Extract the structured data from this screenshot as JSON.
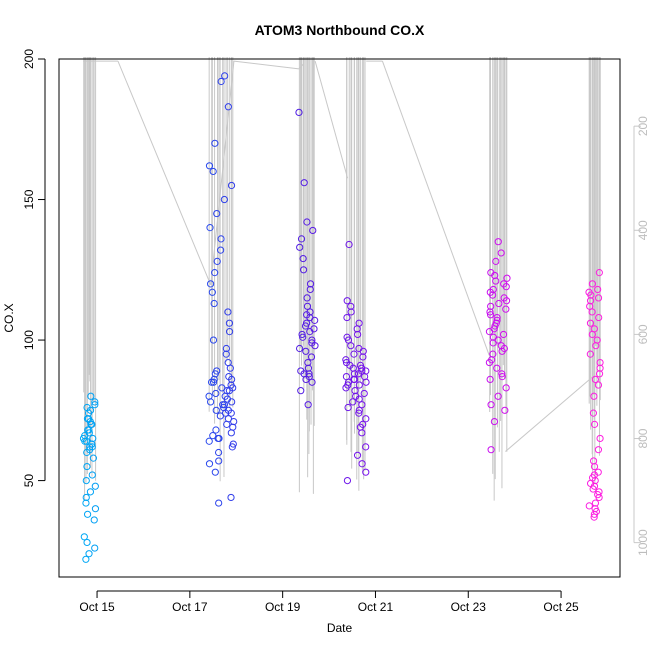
{
  "chart_data": {
    "type": "scatter",
    "title": "ATOM3 Northbound CO.X",
    "xlabel": "Date",
    "ylabel": "CO.X",
    "x_tick_labels": [
      "Oct 15",
      "Oct 17",
      "Oct 19",
      "Oct 21",
      "Oct 23",
      "Oct 25"
    ],
    "x_tick_days": [
      15,
      17,
      19,
      21,
      23,
      25
    ],
    "xlim": [
      14.18,
      26.27
    ],
    "ylim": [
      15.7,
      200
    ],
    "y_ticks": [
      50,
      100,
      150,
      200
    ],
    "secondary_axis": {
      "side": "right",
      "reversed": true,
      "ticks": [
        200,
        400,
        600,
        800,
        1000
      ],
      "range": [
        71,
        1066
      ],
      "line_color": "#c8c8c8",
      "tick_color": "#bdbdbd"
    },
    "grid": false,
    "legend": "none",
    "marker": "open-circle",
    "color_ramp": [
      "#00a9f5",
      "#1f55f0",
      "#4b1fe3",
      "#8a0ef0",
      "#cd0ef0",
      "#ff1fe0"
    ],
    "flights": [
      {
        "day": 14.78,
        "days": [
          14.7,
          14.97
        ],
        "values": [
          22,
          24,
          26,
          28,
          30,
          36,
          38,
          40,
          42,
          44,
          46,
          48,
          50,
          52,
          55,
          58,
          60,
          61,
          62,
          62,
          63,
          63,
          64,
          64,
          65,
          65,
          66,
          67,
          68,
          68,
          70,
          70,
          71,
          72,
          72,
          74,
          75,
          76,
          77,
          78,
          80
        ]
      },
      {
        "day": 17.6,
        "days": [
          17.4,
          17.95
        ],
        "values": [
          42,
          44,
          53,
          56,
          57,
          60,
          62,
          63,
          64,
          65,
          65,
          66,
          67,
          68,
          69,
          70,
          71,
          72,
          73,
          74,
          74,
          75,
          75,
          76,
          77,
          77,
          78,
          78,
          79,
          80,
          80,
          81,
          82,
          82,
          83,
          83,
          84,
          85,
          85,
          86,
          86,
          87,
          88,
          89,
          90,
          92,
          95,
          97,
          100,
          103,
          106,
          110,
          113,
          117,
          120,
          124,
          128,
          132,
          136,
          140,
          145,
          150,
          155,
          160,
          162,
          170,
          183,
          192,
          194
        ]
      },
      {
        "day": 19.55,
        "days": [
          19.35,
          19.7
        ],
        "values": [
          77,
          82,
          85,
          86,
          87,
          88,
          88,
          89,
          90,
          92,
          94,
          96,
          97,
          98,
          99,
          100,
          101,
          102,
          103,
          104,
          105,
          106,
          107,
          108,
          109,
          110,
          112,
          115,
          118,
          120,
          125,
          129,
          133,
          136,
          139,
          142,
          156,
          181
        ]
      },
      {
        "day": 20.6,
        "days": [
          20.35,
          20.8
        ],
        "values": [
          50,
          53,
          56,
          59,
          62,
          67,
          69,
          70,
          72,
          74,
          75,
          76,
          77,
          78,
          79,
          80,
          81,
          82,
          83,
          84,
          84,
          85,
          85,
          86,
          86,
          87,
          87,
          88,
          88,
          89,
          89,
          90,
          90,
          91,
          91,
          92,
          93,
          94,
          95,
          96,
          97,
          98,
          100,
          101,
          102,
          104,
          106,
          108,
          110,
          112,
          114,
          134
        ]
      },
      {
        "day": 23.65,
        "days": [
          23.45,
          23.85
        ],
        "values": [
          61,
          71,
          75,
          77,
          80,
          83,
          86,
          87,
          88,
          90,
          92,
          93,
          95,
          96,
          97,
          98,
          99,
          100,
          101,
          102,
          103,
          104,
          105,
          106,
          107,
          108,
          109,
          110,
          111,
          112,
          113,
          114,
          115,
          116,
          117,
          118,
          119,
          120,
          121,
          122,
          123,
          124,
          128,
          131,
          135
        ]
      },
      {
        "day": 25.72,
        "days": [
          25.6,
          25.85
        ],
        "values": [
          37,
          38,
          39,
          40,
          41,
          42,
          44,
          45,
          46,
          47,
          48,
          49,
          50,
          51,
          52,
          53,
          55,
          57,
          61,
          65,
          70,
          74,
          80,
          84,
          86,
          88,
          90,
          92,
          95,
          98,
          100,
          102,
          104,
          106,
          108,
          110,
          112,
          114,
          115,
          116,
          117,
          118,
          120,
          124
        ]
      }
    ]
  }
}
